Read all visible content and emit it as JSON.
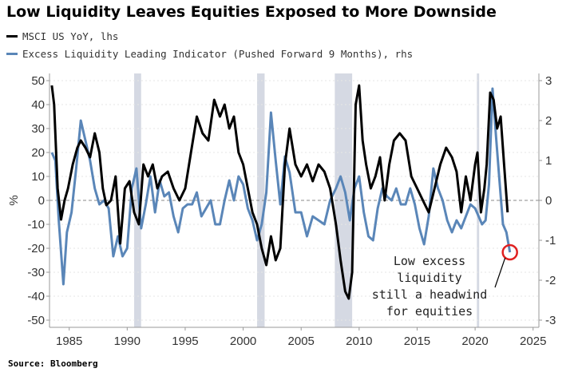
{
  "chart_data": {
    "type": "line",
    "title": "Low Liquidity Leaves Equities Exposed to More Downside",
    "ylabel": "%",
    "xlabel": "",
    "xlim": [
      1983.3,
      2025.5
    ],
    "ylim": [
      -53,
      53
    ],
    "ylim_right": [
      -3.18,
      3.18
    ],
    "xticks": [
      1985,
      1990,
      1995,
      2000,
      2005,
      2010,
      2015,
      2020,
      2025
    ],
    "yticks_left": [
      50,
      40,
      30,
      20,
      10,
      0,
      -10,
      -20,
      -30,
      -40,
      -50
    ],
    "yticks_right": [
      3,
      2,
      1,
      0,
      -1,
      -2,
      -3
    ],
    "shaded_periods": [
      [
        1990.6,
        1991.2
      ],
      [
        2001.2,
        2001.85
      ],
      [
        2007.9,
        2009.4
      ],
      [
        2020.15,
        2020.35
      ]
    ],
    "series": [
      {
        "name": "MSCI US YoY, lhs",
        "axis": "left",
        "color": "#000000",
        "x": [
          1983.5,
          1983.7,
          1984.0,
          1984.3,
          1984.6,
          1984.9,
          1985.3,
          1985.7,
          1986.0,
          1986.4,
          1986.8,
          1987.2,
          1987.6,
          1987.9,
          1988.2,
          1988.6,
          1989.0,
          1989.4,
          1989.8,
          1990.2,
          1990.6,
          1991.0,
          1991.4,
          1991.8,
          1992.2,
          1992.6,
          1993.0,
          1993.5,
          1994.0,
          1994.5,
          1995.0,
          1995.5,
          1996.0,
          1996.5,
          1997.0,
          1997.5,
          1998.0,
          1998.4,
          1998.8,
          1999.2,
          1999.6,
          2000.0,
          2000.4,
          2000.8,
          2001.2,
          2001.6,
          2002.0,
          2002.4,
          2002.8,
          2003.2,
          2003.6,
          2004.0,
          2004.5,
          2005.0,
          2005.5,
          2006.0,
          2006.5,
          2007.0,
          2007.5,
          2008.0,
          2008.4,
          2008.8,
          2009.1,
          2009.4,
          2009.7,
          2010.0,
          2010.3,
          2010.6,
          2011.0,
          2011.4,
          2011.8,
          2012.2,
          2012.6,
          2013.0,
          2013.5,
          2014.0,
          2014.5,
          2015.0,
          2015.5,
          2016.0,
          2016.5,
          2017.0,
          2017.5,
          2018.0,
          2018.4,
          2018.8,
          2019.2,
          2019.6,
          2020.0,
          2020.2,
          2020.5,
          2020.8,
          2021.0,
          2021.3,
          2021.6,
          2021.9,
          2022.2,
          2022.5,
          2022.8
        ],
        "values": [
          48,
          40,
          5,
          -8,
          0,
          5,
          15,
          22,
          25,
          22,
          18,
          28,
          20,
          5,
          -2,
          0,
          10,
          -18,
          5,
          8,
          -5,
          -10,
          15,
          10,
          15,
          5,
          10,
          12,
          5,
          0,
          5,
          20,
          35,
          28,
          25,
          42,
          35,
          40,
          30,
          35,
          20,
          15,
          5,
          -5,
          -10,
          -20,
          -27,
          -15,
          -25,
          -20,
          15,
          30,
          15,
          10,
          15,
          8,
          15,
          12,
          5,
          -10,
          -25,
          -38,
          -41,
          -30,
          40,
          48,
          25,
          15,
          5,
          10,
          18,
          0,
          15,
          25,
          28,
          25,
          10,
          5,
          0,
          -5,
          5,
          15,
          22,
          18,
          12,
          -5,
          10,
          0,
          15,
          20,
          -5,
          5,
          15,
          45,
          42,
          30,
          35,
          15,
          -5
        ]
      },
      {
        "name": "Excess Liquidity Leading Indicator (Pushed Forward 9 Months), rhs",
        "axis": "right",
        "color": "#5A86B8",
        "x": [
          1983.5,
          1983.8,
          1984.1,
          1984.5,
          1984.8,
          1985.2,
          1985.6,
          1986.0,
          1986.4,
          1986.8,
          1987.2,
          1987.6,
          1988.0,
          1988.4,
          1988.8,
          1989.2,
          1989.6,
          1990.0,
          1990.4,
          1990.8,
          1991.2,
          1991.6,
          1992.0,
          1992.4,
          1992.8,
          1993.2,
          1993.6,
          1994.0,
          1994.4,
          1994.8,
          1995.2,
          1995.6,
          1996.0,
          1996.4,
          1996.8,
          1997.2,
          1997.6,
          1998.0,
          1998.4,
          1998.8,
          1999.2,
          1999.6,
          2000.0,
          2000.4,
          2000.8,
          2001.2,
          2001.6,
          2002.0,
          2002.4,
          2002.8,
          2003.2,
          2003.6,
          2004.0,
          2004.5,
          2005.0,
          2005.5,
          2006.0,
          2006.5,
          2007.0,
          2007.5,
          2008.0,
          2008.4,
          2008.8,
          2009.2,
          2009.6,
          2010.0,
          2010.4,
          2010.8,
          2011.2,
          2011.6,
          2012.0,
          2012.4,
          2012.8,
          2013.2,
          2013.6,
          2014.0,
          2014.4,
          2014.8,
          2015.2,
          2015.6,
          2016.0,
          2016.4,
          2016.8,
          2017.2,
          2017.6,
          2018.0,
          2018.4,
          2018.8,
          2019.2,
          2019.6,
          2020.0,
          2020.3,
          2020.6,
          2020.9,
          2021.2,
          2021.5,
          2021.8,
          2022.1,
          2022.4,
          2022.7,
          2023.0
        ],
        "values": [
          1.2,
          1.0,
          -0.5,
          -2.1,
          -0.8,
          -0.3,
          0.8,
          2.0,
          1.5,
          1.0,
          0.3,
          -0.1,
          0.0,
          -0.2,
          -1.4,
          -0.9,
          -1.4,
          -1.2,
          0.3,
          0.8,
          -0.7,
          -0.1,
          0.6,
          -0.3,
          0.5,
          0.1,
          0.2,
          -0.4,
          -0.8,
          -0.2,
          -0.1,
          -0.1,
          0.2,
          -0.4,
          -0.2,
          0.0,
          -0.6,
          -0.6,
          0.0,
          0.5,
          0.0,
          0.6,
          0.4,
          -0.2,
          -0.5,
          -1.0,
          -0.6,
          0.2,
          2.2,
          1.0,
          -0.1,
          1.1,
          0.7,
          -0.3,
          -0.3,
          -0.9,
          -0.4,
          -0.5,
          -0.6,
          0.0,
          0.3,
          0.6,
          0.2,
          -0.5,
          0.3,
          0.6,
          -0.3,
          -0.9,
          -1.0,
          -0.2,
          0.3,
          0.1,
          0.0,
          0.3,
          -0.1,
          -0.1,
          0.3,
          -0.1,
          -0.7,
          -1.1,
          -0.4,
          0.8,
          0.3,
          0.0,
          -0.5,
          -0.8,
          -0.5,
          -0.7,
          -0.4,
          -0.1,
          -0.2,
          -0.4,
          -0.6,
          -0.5,
          0.4,
          2.8,
          1.6,
          0.5,
          -0.6,
          -0.8,
          -1.3
        ]
      }
    ],
    "annotation": {
      "lines": [
        "Low excess",
        "liquidity",
        "still a headwind",
        "for equities"
      ],
      "target": {
        "x": 2023.0,
        "y_right": -1.3
      }
    },
    "source": "Source: Bloomberg"
  }
}
